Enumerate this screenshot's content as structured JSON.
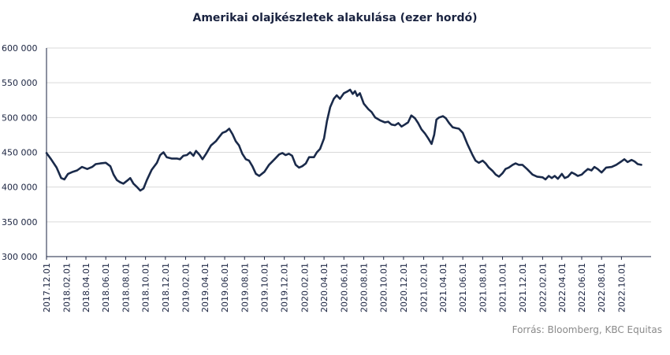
{
  "chart_data": {
    "type": "line",
    "title": "Amerikai olajkészletek alakulása (ezer hordó)",
    "source": "Forrás: Bloomberg,  KBC Equitas",
    "y_ticks": [
      "300 000",
      "350 000",
      "400 000",
      "450 000",
      "500 000",
      "550 000",
      "600 000"
    ],
    "ylim": [
      300000,
      600000
    ],
    "x_tick_labels": [
      "2017.12.01",
      "2018.02.01",
      "2018.04.01",
      "2018.06.01",
      "2018.08.01",
      "2018.10.01",
      "2018.12.01",
      "2019.02.01",
      "2019.04.01",
      "2019.06.01",
      "2019.08.01",
      "2019.10.01",
      "2019.12.01",
      "2020.02.01",
      "2020.04.01",
      "2020.06.01",
      "2020.08.01",
      "2020.10.01",
      "2020.12.01",
      "2021.02.01",
      "2021.04.01",
      "2021.06.01",
      "2021.08.01",
      "2021.10.01",
      "2021.12.01",
      "2022.02.01",
      "2022.04.01",
      "2022.06.01",
      "2022.08.01",
      "2022.10.01"
    ],
    "x_start": "2017.12.01",
    "x_end": "2022.12.31",
    "grid": true,
    "line_color": "#1a2a4a",
    "series": [
      {
        "values": [
          [
            "2017-12-01",
            449000
          ],
          [
            "2017-12-15",
            440000
          ],
          [
            "2018-01-01",
            428000
          ],
          [
            "2018-01-15",
            413000
          ],
          [
            "2018-01-25",
            411000
          ],
          [
            "2018-02-05",
            419000
          ],
          [
            "2018-02-20",
            422000
          ],
          [
            "2018-03-05",
            424000
          ],
          [
            "2018-03-20",
            429000
          ],
          [
            "2018-04-05",
            426000
          ],
          [
            "2018-04-20",
            429000
          ],
          [
            "2018-05-01",
            433000
          ],
          [
            "2018-05-15",
            434000
          ],
          [
            "2018-06-01",
            435000
          ],
          [
            "2018-06-15",
            430000
          ],
          [
            "2018-06-25",
            418000
          ],
          [
            "2018-07-05",
            410000
          ],
          [
            "2018-07-15",
            407000
          ],
          [
            "2018-07-25",
            405000
          ],
          [
            "2018-08-05",
            409000
          ],
          [
            "2018-08-15",
            413000
          ],
          [
            "2018-08-25",
            405000
          ],
          [
            "2018-09-05",
            400000
          ],
          [
            "2018-09-15",
            395000
          ],
          [
            "2018-09-25",
            398000
          ],
          [
            "2018-10-05",
            410000
          ],
          [
            "2018-10-20",
            425000
          ],
          [
            "2018-11-05",
            435000
          ],
          [
            "2018-11-15",
            446000
          ],
          [
            "2018-11-25",
            450000
          ],
          [
            "2018-12-05",
            443000
          ],
          [
            "2018-12-20",
            441000
          ],
          [
            "2019-01-05",
            441000
          ],
          [
            "2019-01-15",
            440000
          ],
          [
            "2019-01-25",
            445000
          ],
          [
            "2019-02-05",
            446000
          ],
          [
            "2019-02-15",
            450000
          ],
          [
            "2019-02-25",
            445000
          ],
          [
            "2019-03-05",
            452000
          ],
          [
            "2019-03-15",
            447000
          ],
          [
            "2019-03-25",
            440000
          ],
          [
            "2019-04-05",
            448000
          ],
          [
            "2019-04-20",
            460000
          ],
          [
            "2019-05-05",
            466000
          ],
          [
            "2019-05-15",
            472000
          ],
          [
            "2019-05-25",
            478000
          ],
          [
            "2019-06-05",
            480000
          ],
          [
            "2019-06-15",
            484000
          ],
          [
            "2019-06-25",
            476000
          ],
          [
            "2019-07-05",
            466000
          ],
          [
            "2019-07-15",
            460000
          ],
          [
            "2019-07-25",
            448000
          ],
          [
            "2019-08-05",
            440000
          ],
          [
            "2019-08-15",
            438000
          ],
          [
            "2019-08-25",
            430000
          ],
          [
            "2019-09-05",
            419000
          ],
          [
            "2019-09-15",
            416000
          ],
          [
            "2019-10-01",
            422000
          ],
          [
            "2019-10-15",
            432000
          ],
          [
            "2019-11-01",
            440000
          ],
          [
            "2019-11-15",
            447000
          ],
          [
            "2019-11-25",
            449000
          ],
          [
            "2019-12-05",
            446000
          ],
          [
            "2019-12-15",
            448000
          ],
          [
            "2019-12-25",
            445000
          ],
          [
            "2020-01-05",
            432000
          ],
          [
            "2020-01-15",
            428000
          ],
          [
            "2020-01-25",
            430000
          ],
          [
            "2020-02-05",
            434000
          ],
          [
            "2020-02-15",
            443000
          ],
          [
            "2020-03-01",
            443000
          ],
          [
            "2020-03-10",
            450000
          ],
          [
            "2020-03-20",
            455000
          ],
          [
            "2020-04-01",
            470000
          ],
          [
            "2020-04-10",
            495000
          ],
          [
            "2020-04-20",
            515000
          ],
          [
            "2020-05-01",
            527000
          ],
          [
            "2020-05-10",
            532000
          ],
          [
            "2020-05-20",
            527000
          ],
          [
            "2020-06-01",
            535000
          ],
          [
            "2020-06-10",
            537000
          ],
          [
            "2020-06-20",
            540000
          ],
          [
            "2020-06-28",
            534000
          ],
          [
            "2020-07-05",
            538000
          ],
          [
            "2020-07-12",
            531000
          ],
          [
            "2020-07-20",
            535000
          ],
          [
            "2020-08-01",
            520000
          ],
          [
            "2020-08-15",
            512000
          ],
          [
            "2020-08-25",
            508000
          ],
          [
            "2020-09-05",
            500000
          ],
          [
            "2020-09-20",
            496000
          ],
          [
            "2020-10-05",
            493000
          ],
          [
            "2020-10-15",
            494000
          ],
          [
            "2020-10-25",
            490000
          ],
          [
            "2020-11-05",
            489000
          ],
          [
            "2020-11-15",
            492000
          ],
          [
            "2020-11-25",
            487000
          ],
          [
            "2020-12-05",
            490000
          ],
          [
            "2020-12-15",
            493000
          ],
          [
            "2020-12-25",
            503000
          ],
          [
            "2021-01-05",
            499000
          ],
          [
            "2021-01-15",
            492000
          ],
          [
            "2021-01-25",
            483000
          ],
          [
            "2021-02-05",
            477000
          ],
          [
            "2021-02-15",
            470000
          ],
          [
            "2021-02-25",
            462000
          ],
          [
            "2021-03-05",
            475000
          ],
          [
            "2021-03-12",
            497000
          ],
          [
            "2021-03-20",
            500000
          ],
          [
            "2021-04-01",
            502000
          ],
          [
            "2021-04-10",
            499000
          ],
          [
            "2021-04-20",
            492000
          ],
          [
            "2021-05-01",
            486000
          ],
          [
            "2021-05-10",
            485000
          ],
          [
            "2021-05-20",
            484000
          ],
          [
            "2021-06-01",
            478000
          ],
          [
            "2021-06-15",
            462000
          ],
          [
            "2021-07-01",
            446000
          ],
          [
            "2021-07-10",
            438000
          ],
          [
            "2021-07-20",
            435000
          ],
          [
            "2021-08-01",
            438000
          ],
          [
            "2021-08-10",
            434000
          ],
          [
            "2021-08-20",
            428000
          ],
          [
            "2021-09-01",
            423000
          ],
          [
            "2021-09-10",
            418000
          ],
          [
            "2021-09-20",
            415000
          ],
          [
            "2021-10-01",
            420000
          ],
          [
            "2021-10-10",
            426000
          ],
          [
            "2021-10-20",
            428000
          ],
          [
            "2021-11-01",
            432000
          ],
          [
            "2021-11-10",
            434000
          ],
          [
            "2021-11-20",
            432000
          ],
          [
            "2021-12-01",
            432000
          ],
          [
            "2021-12-15",
            426000
          ],
          [
            "2022-01-01",
            418000
          ],
          [
            "2022-01-15",
            415000
          ],
          [
            "2022-02-01",
            414000
          ],
          [
            "2022-02-10",
            411000
          ],
          [
            "2022-02-20",
            416000
          ],
          [
            "2022-03-01",
            413000
          ],
          [
            "2022-03-10",
            416000
          ],
          [
            "2022-03-20",
            412000
          ],
          [
            "2022-04-01",
            419000
          ],
          [
            "2022-04-10",
            413000
          ],
          [
            "2022-04-20",
            415000
          ],
          [
            "2022-05-01",
            421000
          ],
          [
            "2022-05-10",
            419000
          ],
          [
            "2022-05-20",
            416000
          ],
          [
            "2022-06-01",
            418000
          ],
          [
            "2022-06-10",
            422000
          ],
          [
            "2022-06-20",
            426000
          ],
          [
            "2022-07-01",
            424000
          ],
          [
            "2022-07-10",
            429000
          ],
          [
            "2022-07-20",
            426000
          ],
          [
            "2022-08-01",
            421000
          ],
          [
            "2022-08-15",
            428000
          ],
          [
            "2022-09-01",
            429000
          ],
          [
            "2022-09-15",
            432000
          ],
          [
            "2022-10-01",
            437000
          ],
          [
            "2022-10-10",
            440000
          ],
          [
            "2022-10-20",
            436000
          ],
          [
            "2022-11-01",
            439000
          ],
          [
            "2022-11-10",
            437000
          ],
          [
            "2022-11-20",
            433000
          ],
          [
            "2022-12-01",
            432000
          ]
        ]
      }
    ]
  }
}
